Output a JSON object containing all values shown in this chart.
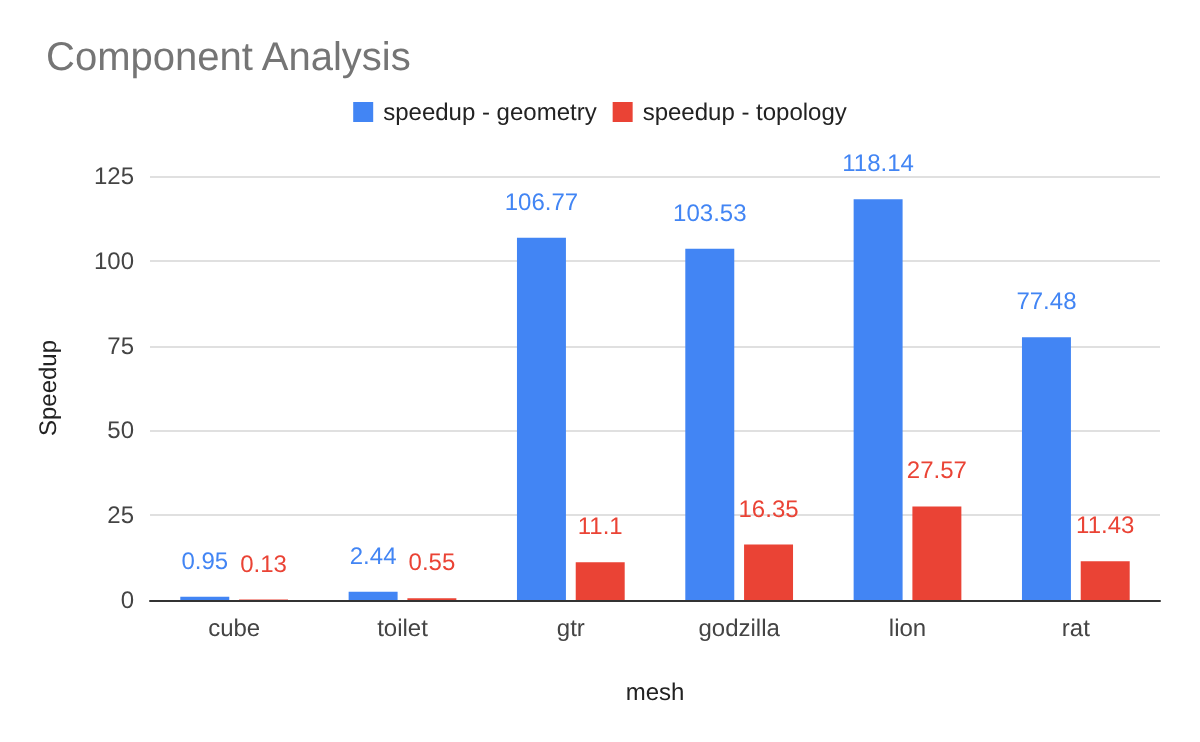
{
  "chart_data": {
    "type": "bar",
    "title": "Component Analysis",
    "xlabel": "mesh",
    "ylabel": "Speedup",
    "categories": [
      "cube",
      "toilet",
      "gtr",
      "godzilla",
      "lion",
      "rat"
    ],
    "series": [
      {
        "name": "speedup - geometry",
        "color": "#4285f4",
        "values": [
          0.95,
          2.44,
          106.77,
          103.53,
          118.14,
          77.48
        ]
      },
      {
        "name": "speedup - topology",
        "color": "#ea4335",
        "values": [
          0.13,
          0.55,
          11.1,
          16.35,
          27.57,
          11.43
        ]
      }
    ],
    "ylim": [
      0,
      125
    ],
    "yticks": [
      0,
      25,
      50,
      75,
      100,
      125
    ],
    "grid": "y",
    "legend": "top",
    "data_labels": true
  }
}
